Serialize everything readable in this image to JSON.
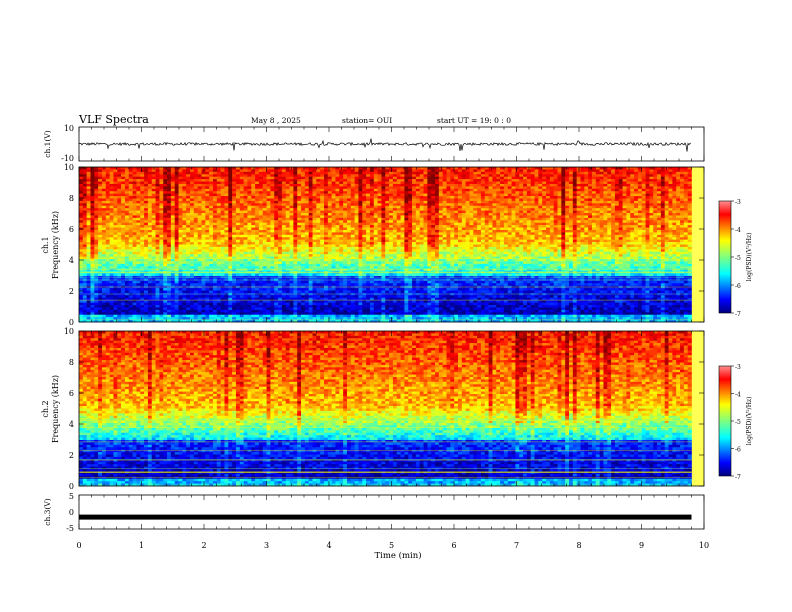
{
  "header": {
    "title": "VLF Spectra",
    "date": "May 8 , 2025",
    "station": "station= OUI",
    "start_ut": "start UT = 19: 0 : 0"
  },
  "chart_data": [
    {
      "type": "line",
      "name": "ch1_waveform",
      "ylabel": "ch.1(V)",
      "ylim": [
        -10,
        10
      ],
      "yticks": [
        "10",
        "-10"
      ],
      "xlim": [
        0,
        10
      ],
      "data_extent_min": 9.8,
      "baseline": 0,
      "noise_amplitude": 0.8,
      "spike_amplitude": 3.5
    },
    {
      "type": "heatmap",
      "name": "ch1_spectrogram",
      "ylabel_line1": "ch.1",
      "ylabel_line2": "Frequency (kHz)",
      "ylim": [
        0,
        10
      ],
      "yticks": [
        "0",
        "2",
        "4",
        "6",
        "8",
        "10"
      ],
      "xlim": [
        0,
        10
      ],
      "colorbar": {
        "label": "log(PSD)(V²/Hz)",
        "range": [
          -7,
          -3
        ],
        "ticks": [
          "-3",
          "-4",
          "-5",
          "-6",
          "-7"
        ]
      }
    },
    {
      "type": "heatmap",
      "name": "ch2_spectrogram",
      "ylabel_line1": "ch.2",
      "ylabel_line2": "Frequency (kHz)",
      "ylim": [
        0,
        10
      ],
      "yticks": [
        "0",
        "2",
        "4",
        "6",
        "8",
        "10"
      ],
      "xlim": [
        0,
        10
      ],
      "colorbar": {
        "label": "log(PSD)(V²/Hz)",
        "range": [
          -7,
          -3
        ],
        "ticks": [
          "-3",
          "-4",
          "-5",
          "-6",
          "-7"
        ]
      }
    },
    {
      "type": "line",
      "name": "ch3_waveform",
      "ylabel": "ch.3(V)",
      "ylim": [
        -5,
        5
      ],
      "yticks": [
        "5",
        "0",
        "-5"
      ],
      "xlim": [
        0,
        10
      ],
      "data_extent_min": 9.8,
      "baseline": -1.5
    }
  ],
  "x_axis": {
    "label": "Time (min)",
    "ticks": [
      "0",
      "1",
      "2",
      "3",
      "4",
      "5",
      "6",
      "7",
      "8",
      "9",
      "10"
    ]
  },
  "colors": {
    "jet": [
      "#00007f",
      "#0000ff",
      "#007fff",
      "#00ffff",
      "#7fff7f",
      "#ffff00",
      "#ff7f00",
      "#ff0000",
      "#7f0000"
    ]
  }
}
